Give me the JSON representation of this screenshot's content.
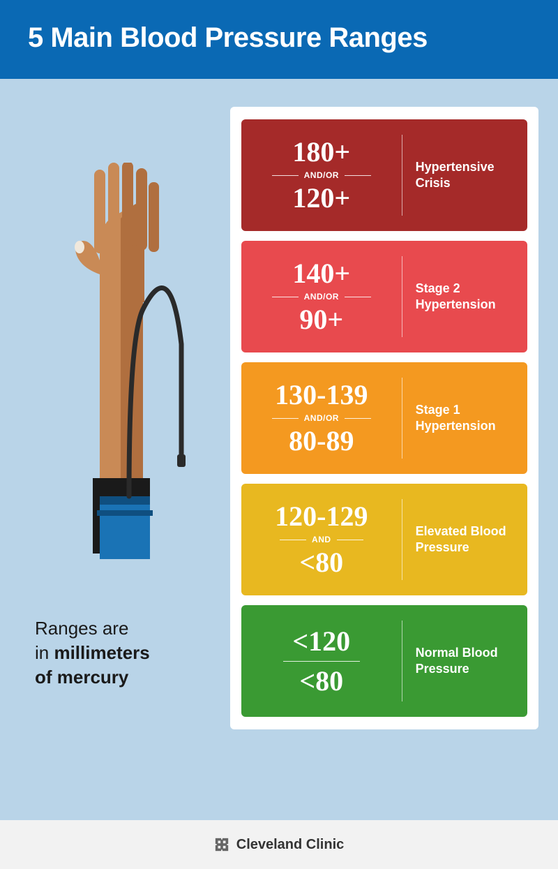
{
  "header": {
    "title": "5 Main Blood Pressure Ranges"
  },
  "caption": {
    "line1": "Ranges are",
    "line2_pre": "in ",
    "line2_bold": "millimeters",
    "line3_bold": "of mercury"
  },
  "colors": {
    "header_bg": "#0a69b4",
    "page_bg": "#b9d4e8",
    "panel_bg": "#ffffff",
    "footer_bg": "#f2f2f2"
  },
  "arm": {
    "skin": "#c98a56",
    "skin_dark": "#b06f3f",
    "cuff": "#1a73b5",
    "cuff_dark": "#1a1a1a",
    "tube": "#2a2a2a",
    "nail": "#f0e8dc"
  },
  "ranges": [
    {
      "bg": "#a52a29",
      "systolic": "180+",
      "connector": "AND/OR",
      "diastolic": "120+",
      "label": "Hypertensive Crisis",
      "simple": false
    },
    {
      "bg": "#e84a4e",
      "systolic": "140+",
      "connector": "AND/OR",
      "diastolic": "90+",
      "label": "Stage 2 Hypertension",
      "simple": false
    },
    {
      "bg": "#f49920",
      "systolic": "130-139",
      "connector": "AND/OR",
      "diastolic": "80-89",
      "label": "Stage 1 Hypertension",
      "simple": false
    },
    {
      "bg": "#e8b820",
      "systolic": "120-129",
      "connector": "AND",
      "diastolic": "<80",
      "label": "Elevated Blood Pressure",
      "simple": false
    },
    {
      "bg": "#3a9a33",
      "systolic": "<120",
      "connector": "",
      "diastolic": "<80",
      "label": "Normal Blood Pressure",
      "simple": true
    }
  ],
  "footer": {
    "brand": "Cleveland Clinic"
  }
}
